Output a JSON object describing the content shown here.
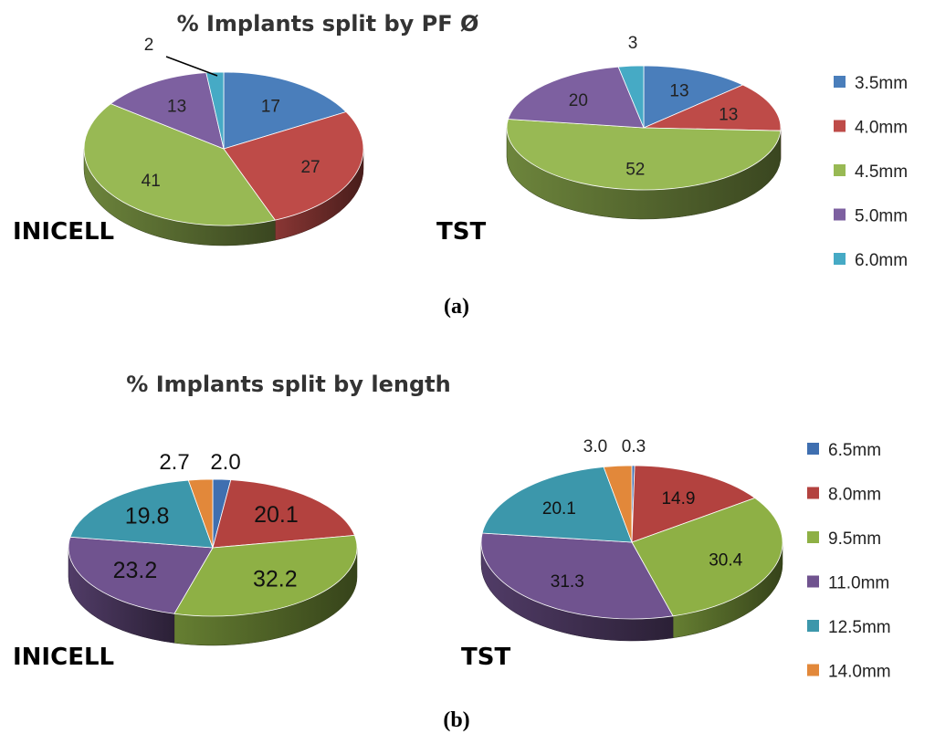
{
  "chart_data": [
    {
      "id": "a-inicell",
      "type": "pie",
      "title": "% Implants split by PF Ø",
      "group_label": "INICELL",
      "panel_label": "a",
      "categories": [
        "3.5mm",
        "4.0mm",
        "4.5mm",
        "5.0mm",
        "6.0mm"
      ],
      "values": [
        17,
        27,
        41,
        13,
        2
      ],
      "labels": [
        "17",
        "27",
        "41",
        "13",
        "2"
      ],
      "colors": [
        "#4A7EBB",
        "#BE4B48",
        "#98B954",
        "#7D60A0",
        "#46AAC5"
      ]
    },
    {
      "id": "a-tst",
      "type": "pie",
      "title": "% Implants split by PF Ø",
      "group_label": "TST",
      "panel_label": "a",
      "categories": [
        "3.5mm",
        "4.0mm",
        "4.5mm",
        "5.0mm",
        "6.0mm"
      ],
      "values": [
        13,
        13,
        52,
        20,
        3
      ],
      "labels": [
        "13",
        "13",
        "52",
        "20",
        "3"
      ],
      "colors": [
        "#4A7EBB",
        "#BE4B48",
        "#98B954",
        "#7D60A0",
        "#46AAC5"
      ]
    },
    {
      "id": "b-inicell",
      "type": "pie",
      "title": "% Implants split by length",
      "group_label": "INICELL",
      "panel_label": "b",
      "categories": [
        "6.5mm",
        "8.0mm",
        "9.5mm",
        "11.0mm",
        "12.5mm",
        "14.0mm"
      ],
      "values": [
        2.0,
        20.1,
        32.2,
        23.2,
        19.8,
        2.7
      ],
      "labels": [
        "2.0",
        "20.1",
        "32.2",
        "23.2",
        "19.8",
        "2.7"
      ],
      "colors": [
        "#3F6FB0",
        "#B3423F",
        "#8EB045",
        "#70538F",
        "#3C97AB",
        "#E2883A"
      ]
    },
    {
      "id": "b-tst",
      "type": "pie",
      "title": "% Implants split by length",
      "group_label": "TST",
      "panel_label": "b",
      "categories": [
        "6.5mm",
        "8.0mm",
        "9.5mm",
        "11.0mm",
        "12.5mm",
        "14.0mm"
      ],
      "values": [
        0.3,
        14.9,
        30.4,
        31.3,
        20.1,
        3.0
      ],
      "labels": [
        "0.3",
        "14.9",
        "30.4",
        "31.3",
        "20.1",
        "3.0"
      ],
      "colors": [
        "#3F6FB0",
        "#B3423F",
        "#8EB045",
        "#70538F",
        "#3C97AB",
        "#E2883A"
      ]
    }
  ],
  "panels": {
    "a": {
      "title": "% Implants split by PF Ø",
      "label": "(a)",
      "legend": [
        "3.5mm",
        "4.0mm",
        "4.5mm",
        "5.0mm",
        "6.0mm"
      ],
      "legend_colors": [
        "#4A7EBB",
        "#BE4B48",
        "#98B954",
        "#7D60A0",
        "#46AAC5"
      ]
    },
    "b": {
      "title": "% Implants split by length",
      "label": "(b)",
      "legend": [
        "6.5mm",
        "8.0mm",
        "9.5mm",
        "11.0mm",
        "12.5mm",
        "14.0mm"
      ],
      "legend_colors": [
        "#3F6FB0",
        "#B3423F",
        "#8EB045",
        "#70538F",
        "#3C97AB",
        "#E2883A"
      ]
    }
  }
}
